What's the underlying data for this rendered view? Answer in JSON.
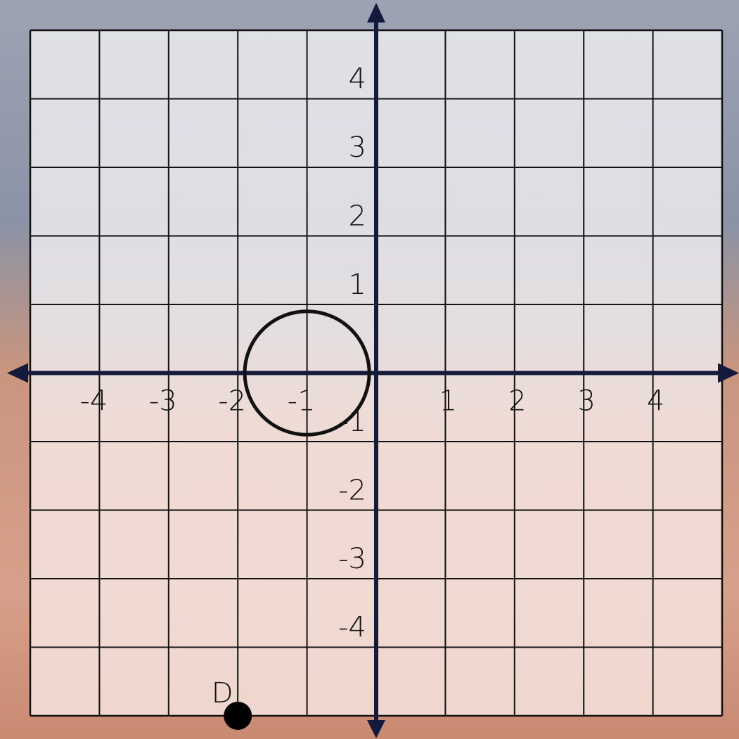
{
  "chart_data": {
    "type": "scatter",
    "xlim": [
      -5,
      5
    ],
    "ylim": [
      -5,
      5
    ],
    "xticks": [
      -4,
      -3,
      -2,
      -1,
      1,
      2,
      3,
      4
    ],
    "yticks": [
      4,
      3,
      2,
      1,
      -1,
      -2,
      -3,
      -4
    ],
    "grid": true,
    "circle": {
      "cx": -1,
      "cy": 0,
      "r": 0.9
    },
    "points": [
      {
        "label": "D",
        "x": -2,
        "y": -5
      }
    ]
  }
}
